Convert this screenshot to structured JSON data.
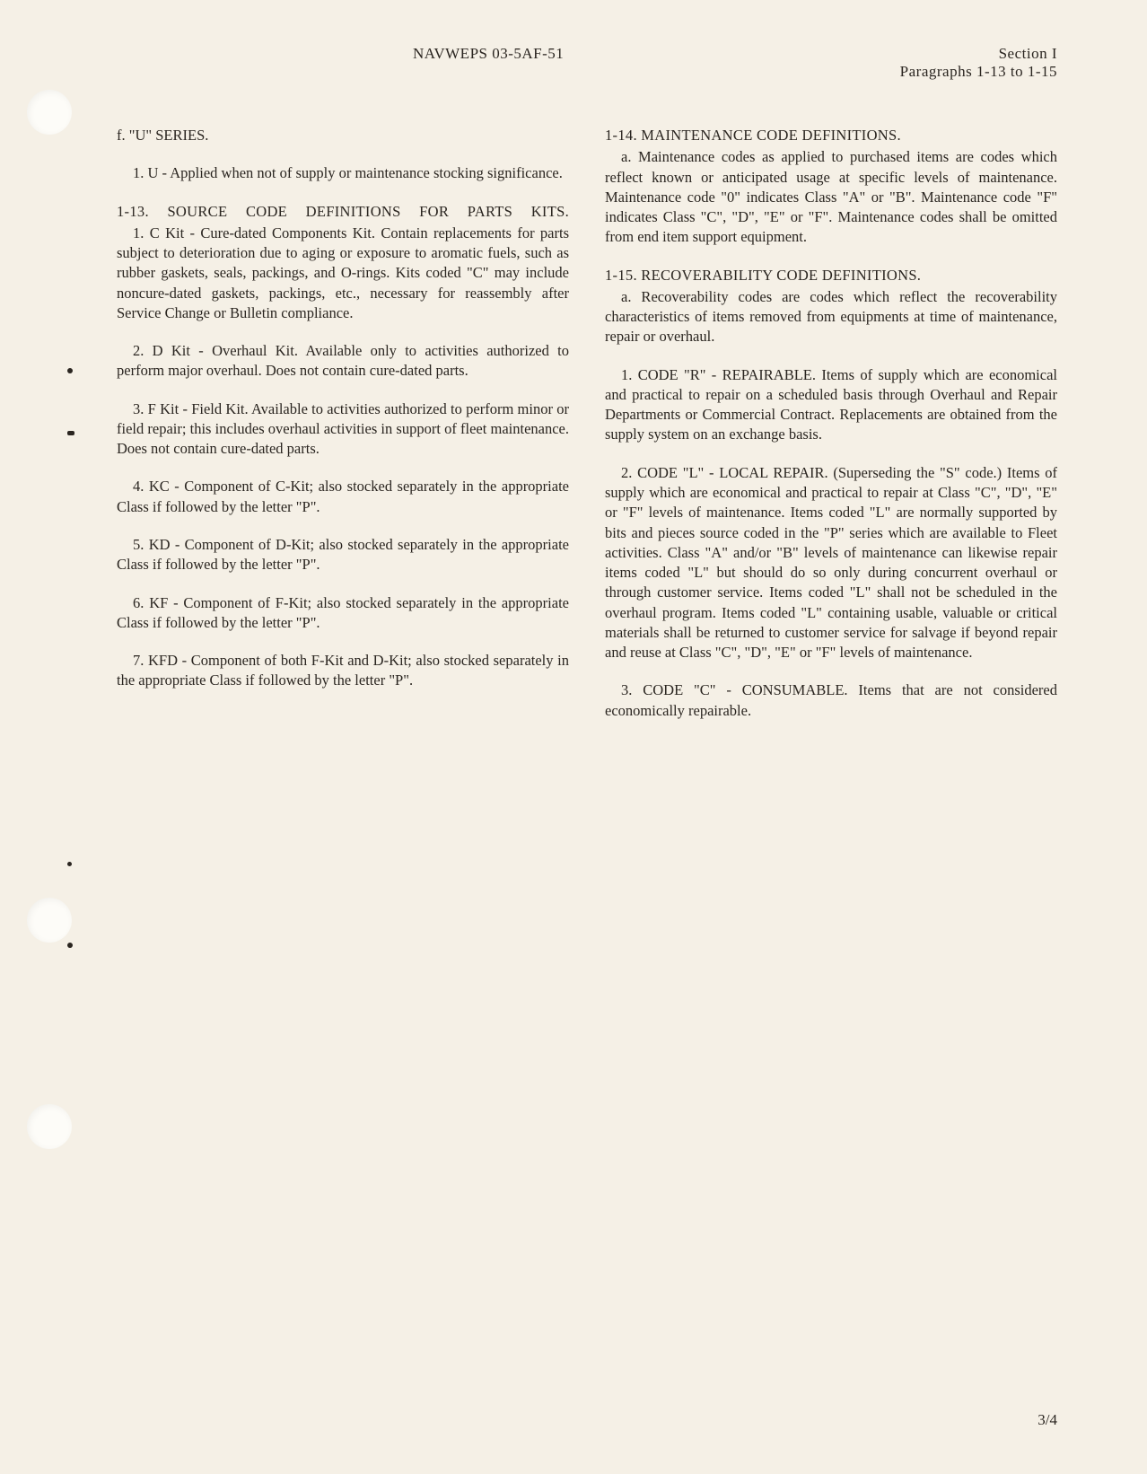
{
  "header": {
    "docNumber": "NAVWEPS 03-5AF-51",
    "section": "Section I",
    "paragraphs": "Paragraphs 1-13 to 1-15"
  },
  "leftColumn": {
    "seriesF": "f.  \"U\" SERIES.",
    "item1": "1. U - Applied when not of supply or maintenance stocking significance.",
    "heading113": "1-13.  SOURCE  CODE  DEFINITIONS  FOR  PARTS KITS.",
    "kit1": "1. C Kit - Cure-dated Components Kit. Contain replacements for parts subject to deterioration due to aging or exposure to aromatic fuels, such as rubber gaskets, seals, packings, and O-rings. Kits coded \"C\" may include noncure-dated gaskets, packings, etc., necessary for reassembly after Service Change or Bulletin compliance.",
    "kit2": "2. D Kit - Overhaul Kit. Available only to activities authorized to perform major overhaul. Does not contain cure-dated parts.",
    "kit3": "3. F Kit - Field Kit. Available to activities authorized to perform minor or field repair; this includes overhaul activities in support of fleet maintenance. Does not contain cure-dated parts.",
    "kit4": "4. KC - Component of C-Kit; also stocked separately in the appropriate Class if followed by the letter \"P\".",
    "kit5": "5. KD - Component of D-Kit; also stocked separately in the appropriate Class if followed by the letter \"P\".",
    "kit6": "6. KF - Component of F-Kit; also stocked separately in the appropriate Class if followed by the letter \"P\".",
    "kit7": "7. KFD - Component of both F-Kit and D-Kit; also stocked separately in the appropriate Class if followed by the letter \"P\"."
  },
  "rightColumn": {
    "heading114": "1-14.  MAINTENANCE CODE DEFINITIONS.",
    "para114a": "a. Maintenance codes as applied to purchased items are codes which reflect known or anticipated usage at specific levels of maintenance. Maintenance code \"0\" indicates Class \"A\" or \"B\". Maintenance code \"F\" indicates Class \"C\", \"D\", \"E\" or \"F\". Maintenance codes shall be omitted from end item support equipment.",
    "heading115": "1-15. RECOVERABILITY CODE DEFINITIONS.",
    "para115a": "a. Recoverability codes are codes which reflect the recoverability characteristics of items removed from equipments at time of maintenance, repair or overhaul.",
    "code1": "1. CODE \"R\" - REPAIRABLE. Items of supply which are economical and practical to repair on a scheduled basis through Overhaul and Repair Departments or Commercial Contract. Replacements are obtained from the supply system on an exchange basis.",
    "code2": "2. CODE \"L\" - LOCAL REPAIR. (Superseding the \"S\" code.) Items of supply which are economical and practical to repair at Class \"C\", \"D\", \"E\" or \"F\" levels of maintenance. Items coded \"L\" are normally supported by bits and pieces source coded in the \"P\" series which are available to Fleet activities. Class \"A\" and/or \"B\" levels of maintenance can likewise repair items coded \"L\" but should do so only during concurrent overhaul or through customer service. Items coded \"L\" shall not be scheduled in the overhaul program. Items coded \"L\" containing usable, valuable or critical materials shall be returned to customer service for salvage if beyond repair and reuse at Class \"C\", \"D\", \"E\" or \"F\" levels of maintenance.",
    "code3": "3. CODE \"C\" - CONSUMABLE. Items that are not considered economically repairable."
  },
  "pageNumber": "3/4"
}
